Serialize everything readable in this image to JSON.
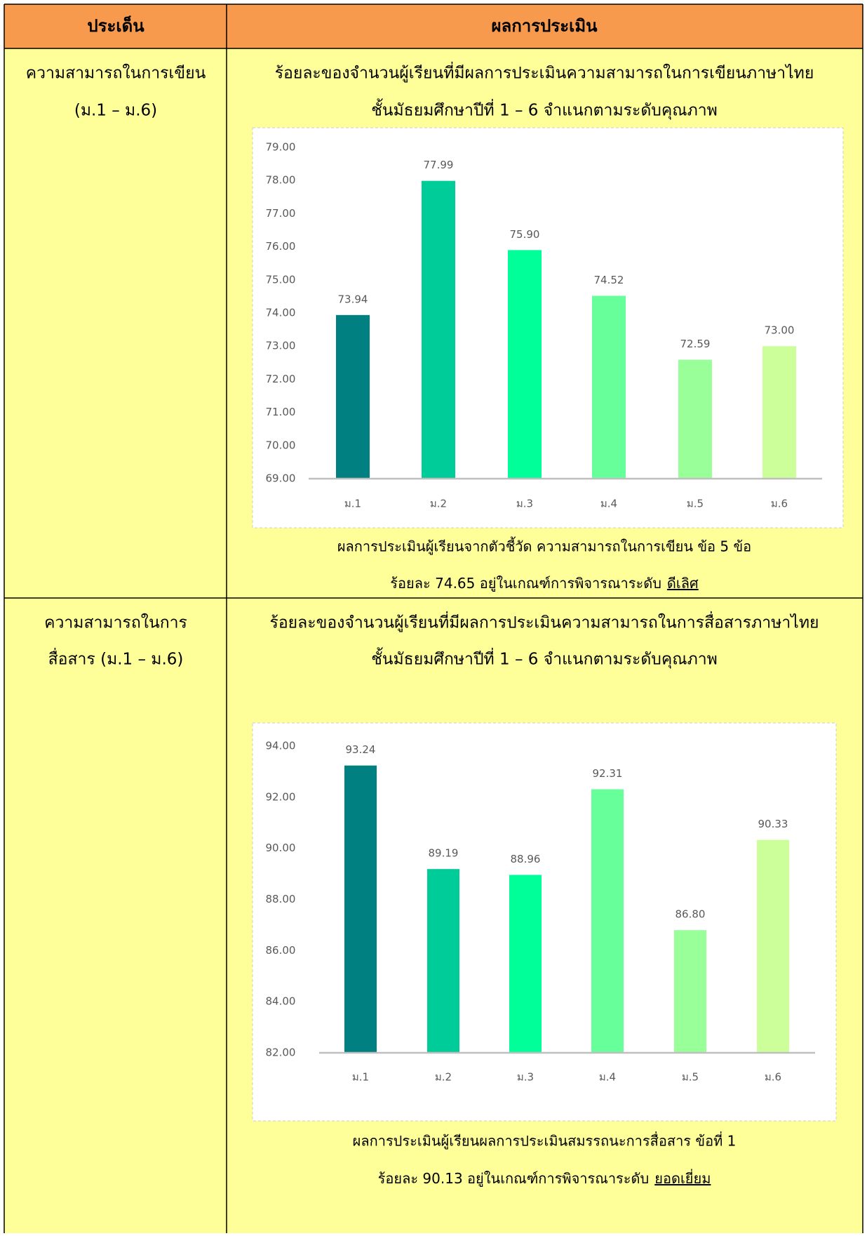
{
  "table": {
    "header": [
      "ประเด็น",
      "ผลการประเมิน"
    ],
    "rows": [
      {
        "topic": [
          "ความสามารถในการเขียน",
          "(ม.1 – ม.6)"
        ],
        "heading": [
          "ร้อยละของจำนวนผู้เรียนที่มีผลการประเมินความสามารถในการเขียนภาษาไทย",
          "ชั้นมัธยมศึกษาปีที่ 1 – 6  จำแนกตามระดับคุณภาพ"
        ],
        "note": [
          "ผลการประเมินผู้เรียนจากตัวชี้วัด ความสามารถในการเขียน ข้อ 5 ข้อ",
          "ร้อยละ 74.65 อยู่ในเกณฑ์การพิจารณาระดับ"
        ],
        "level": "ดีเลิศ"
      },
      {
        "topic": [
          "ความสามารถในการ",
          "สื่อสาร (ม.1 – ม.6)"
        ],
        "heading": [
          "ร้อยละของจำนวนผู้เรียนที่มีผลการประเมินความสามารถในการสื่อสารภาษาไทย",
          "ชั้นมัธยมศึกษาปีที่ 1 – 6  จำแนกตามระดับคุณภาพ"
        ],
        "note": [
          "ผลการประเมินผู้เรียนผลการประเมินสมรรถนะการสื่อสาร ข้อที่ 1",
          "ร้อยละ 90.13 อยู่ในเกณฑ์การพิจารณาระดับ"
        ],
        "level": "ยอดเยี่ยม"
      }
    ]
  },
  "chart_data": [
    {
      "type": "bar",
      "categories": [
        "ม.1",
        "ม.2",
        "ม.3",
        "ม.4",
        "ม.5",
        "ม.6"
      ],
      "values": [
        73.94,
        77.99,
        75.9,
        74.52,
        72.59,
        73.0
      ],
      "value_labels": [
        "73.94",
        "77.99",
        "75.90",
        "74.52",
        "72.59",
        "73.00"
      ],
      "colors": [
        "#008080",
        "#00cc99",
        "#00ff99",
        "#66ff99",
        "#99ff99",
        "#ccff99"
      ],
      "ylim": [
        69,
        79
      ],
      "yticks": [
        {
          "value": 69,
          "label": "69.00"
        },
        {
          "value": 70,
          "label": "70.00"
        },
        {
          "value": 71,
          "label": "71.00"
        },
        {
          "value": 72,
          "label": "72.00"
        },
        {
          "value": 73,
          "label": "73.00"
        },
        {
          "value": 74,
          "label": "74.00"
        },
        {
          "value": 75,
          "label": "75.00"
        },
        {
          "value": 76,
          "label": "76.00"
        },
        {
          "value": 77,
          "label": "77.00"
        },
        {
          "value": 78,
          "label": "78.00"
        },
        {
          "value": 79,
          "label": "79.00"
        }
      ]
    },
    {
      "type": "bar",
      "categories": [
        "ม.1",
        "ม.2",
        "ม.3",
        "ม.4",
        "ม.5",
        "ม.6"
      ],
      "values": [
        93.24,
        89.19,
        88.96,
        92.31,
        86.8,
        90.33
      ],
      "value_labels": [
        "93.24",
        "89.19",
        "88.96",
        "92.31",
        "86.80",
        "90.33"
      ],
      "colors": [
        "#008080",
        "#00cc99",
        "#00ff99",
        "#66ff99",
        "#99ff99",
        "#ccff99"
      ],
      "ylim": [
        82,
        94
      ],
      "yticks": [
        {
          "value": 82,
          "label": "82.00"
        },
        {
          "value": 84,
          "label": "84.00"
        },
        {
          "value": 86,
          "label": "86.00"
        },
        {
          "value": 88,
          "label": "88.00"
        },
        {
          "value": 90,
          "label": "90.00"
        },
        {
          "value": 92,
          "label": "92.00"
        },
        {
          "value": 94,
          "label": "94.00"
        }
      ]
    }
  ]
}
